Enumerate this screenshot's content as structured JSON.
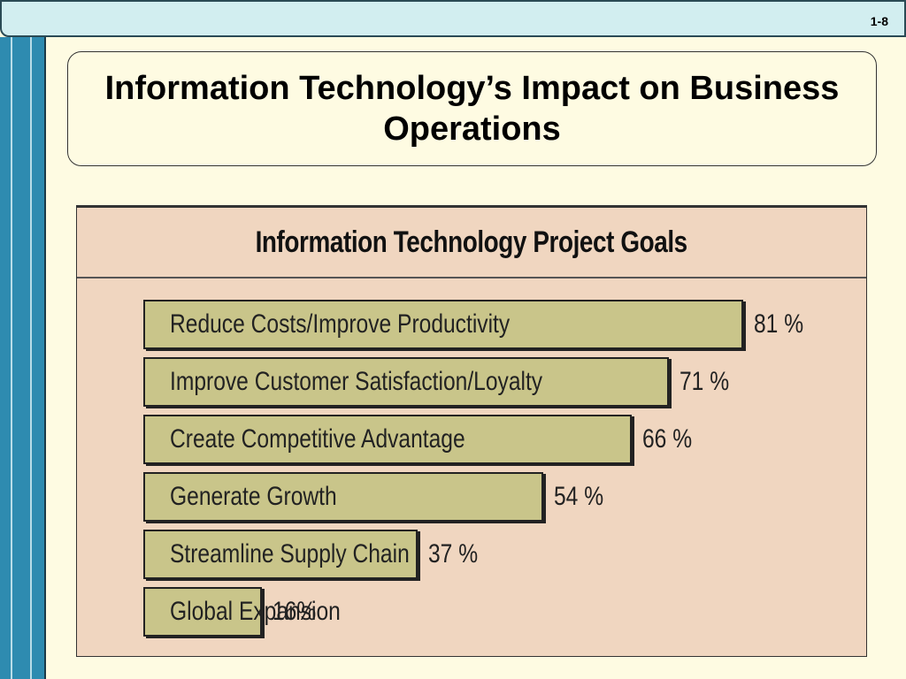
{
  "slide": {
    "number": "1-8"
  },
  "title": "Information Technology’s Impact on Business Operations",
  "chart_data": {
    "type": "bar",
    "orientation": "horizontal",
    "title": "Information Technology Project Goals",
    "categories": [
      "Reduce Costs/Improve Productivity",
      "Improve Customer Satisfaction/Loyalty",
      "Create Competitive Advantage",
      "Generate Growth",
      "Streamline Supply Chain",
      "Global Expansion"
    ],
    "values": [
      81,
      71,
      66,
      54,
      37,
      16
    ],
    "value_labels": [
      "81 %",
      "71 %",
      "66 %",
      "54 %",
      "37 %",
      "16%"
    ],
    "xlim": [
      0,
      100
    ],
    "colors": {
      "bar": "#c9c58a",
      "panel": "#f0d6c0"
    }
  }
}
